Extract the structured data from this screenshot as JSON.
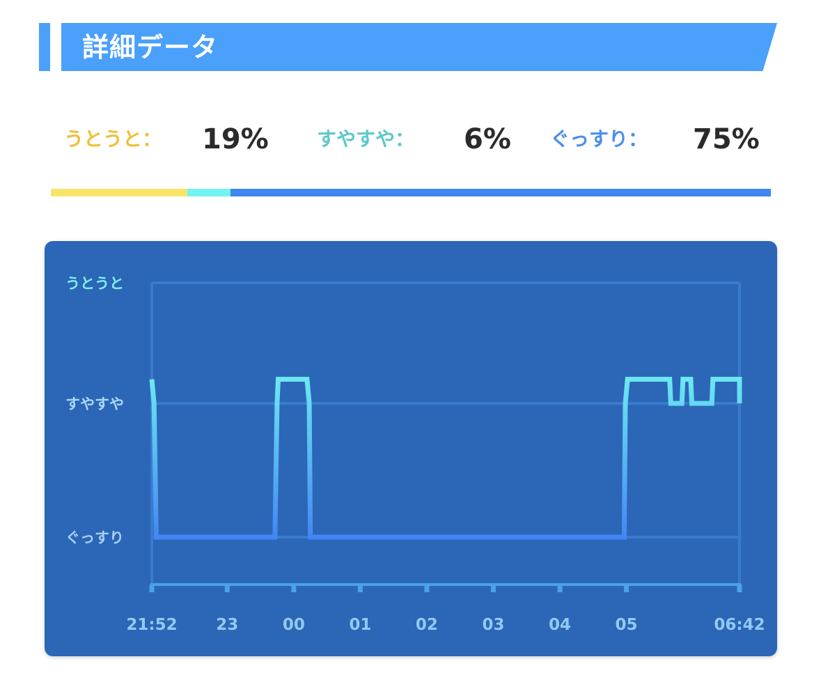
{
  "header": {
    "title": "詳細データ"
  },
  "stats": [
    {
      "label": "うとうと：",
      "value": "19%",
      "percent": 19,
      "color": "#edc13c",
      "bar_color": "#f9e46a"
    },
    {
      "label": "すやすや：",
      "value": "6%",
      "percent": 6,
      "color": "#5ec8c9",
      "bar_color": "#74f3f3"
    },
    {
      "label": "ぐっすり：",
      "value": "75%",
      "percent": 75,
      "color": "#4a8fe9",
      "bar_color": "#3f86ee"
    }
  ],
  "chart_data": {
    "type": "line",
    "step": true,
    "y_levels": [
      {
        "label": "うとうと",
        "value": 0,
        "color": "#7ef0f0"
      },
      {
        "label": "すやすや",
        "value": 1,
        "color": "#a9daf8"
      },
      {
        "label": "ぐっすり",
        "value": 2,
        "color": "#a9cff6"
      }
    ],
    "x_ticks": [
      {
        "label": "21:52",
        "time": "21:52"
      },
      {
        "label": "23",
        "time": "23:00"
      },
      {
        "label": "00",
        "time": "00:00"
      },
      {
        "label": "01",
        "time": "01:00"
      },
      {
        "label": "02",
        "time": "02:00"
      },
      {
        "label": "03",
        "time": "03:00"
      },
      {
        "label": "04",
        "time": "04:00"
      },
      {
        "label": "05",
        "time": "05:00"
      },
      {
        "label": "06:42",
        "time": "06:42"
      }
    ],
    "x_range": [
      "21:52",
      "06:42"
    ],
    "grid": true,
    "series": [
      {
        "points": [
          [
            "21:52",
            0.8
          ],
          [
            "21:54",
            1
          ],
          [
            "21:56",
            2
          ],
          [
            "23:43",
            2
          ],
          [
            "23:45",
            1
          ],
          [
            "23:46",
            0.8
          ],
          [
            "00:12",
            0.8
          ],
          [
            "00:14",
            1
          ],
          [
            "00:15",
            2
          ],
          [
            "04:58",
            2
          ],
          [
            "04:59",
            1
          ],
          [
            "05:01",
            0.8
          ],
          [
            "05:39",
            0.8
          ],
          [
            "05:40",
            1
          ],
          [
            "05:50",
            1
          ],
          [
            "05:51",
            0.8
          ],
          [
            "05:58",
            0.8
          ],
          [
            "05:59",
            1
          ],
          [
            "06:17",
            1
          ],
          [
            "06:18",
            0.8
          ],
          [
            "06:42",
            0.8
          ],
          [
            "06:42",
            1
          ]
        ],
        "colors": {
          "top": "#e0f7a6",
          "middle": "#6eecf2",
          "bottom": "#4486f4"
        }
      }
    ]
  }
}
